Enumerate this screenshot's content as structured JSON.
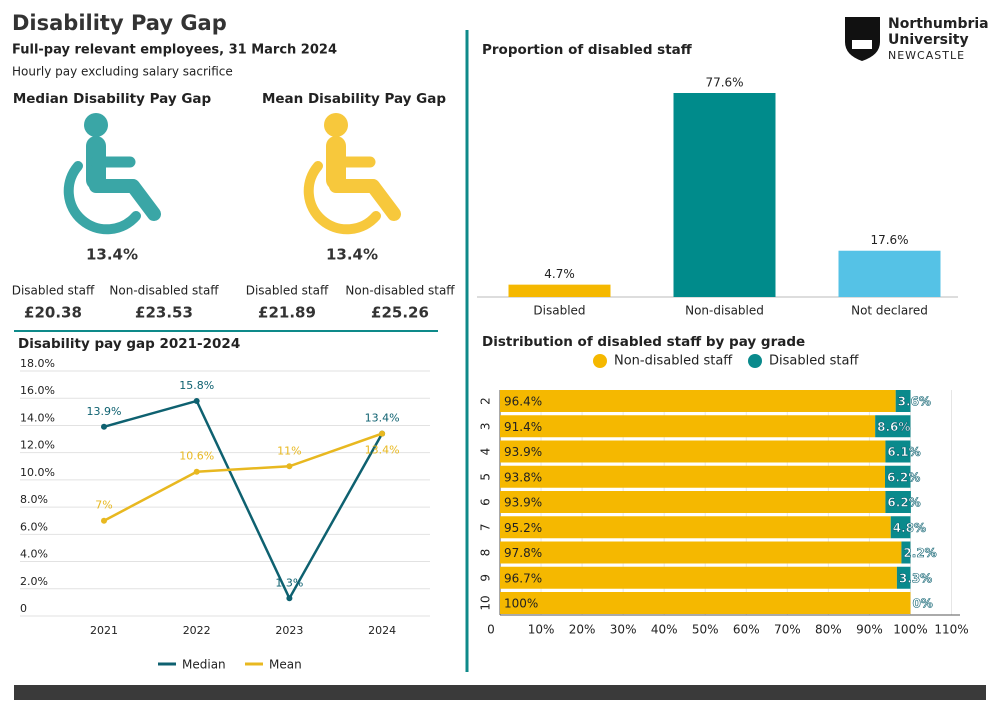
{
  "header": {
    "title": "Disability Pay Gap",
    "subtitle": "Full-pay relevant employees, 31 March 2024",
    "note": "Hourly pay excluding salary sacrifice",
    "logo": [
      "Northumbria",
      "University",
      "NEWCASTLE"
    ]
  },
  "kpis": [
    {
      "title": "Median Disability Pay Gap",
      "value": "13.4%",
      "color": "#3aa6a6",
      "disabled_label": "Disabled staff",
      "disabled_value": "£20.38",
      "non_disabled_label": "Non-disabled staff",
      "non_disabled_value": "£23.53"
    },
    {
      "title": "Mean Disability Pay Gap",
      "value": "13.4%",
      "color": "#f7c83c",
      "disabled_label": "Disabled staff",
      "disabled_value": "£21.89",
      "non_disabled_label": "Non-disabled staff",
      "non_disabled_value": "£25.26"
    }
  ],
  "chart_data": [
    {
      "type": "line",
      "title": "Disability pay gap 2021-2024",
      "categories": [
        "2021",
        "2022",
        "2023",
        "2024"
      ],
      "series": [
        {
          "name": "Median",
          "color": "#0e6170",
          "values": [
            13.9,
            15.8,
            1.3,
            13.4
          ],
          "value_labels": [
            "13.9%",
            "15.8%",
            "1.3%",
            "13.4%"
          ]
        },
        {
          "name": "Mean",
          "color": "#e8b820",
          "values": [
            7,
            10.6,
            11,
            13.4
          ],
          "value_labels": [
            "7%",
            "10.6%",
            "11%",
            "13.4%"
          ]
        }
      ],
      "ylim": [
        0,
        18
      ],
      "yticks": [
        0,
        {
          "value": 2,
          "label": "2.0%"
        },
        {
          "value": 4,
          "label": "4.0%"
        },
        {
          "value": 6,
          "label": "6.0%"
        },
        {
          "value": 8,
          "label": "8.0%"
        },
        {
          "value": 10,
          "label": "10.0%"
        },
        {
          "value": 12,
          "label": "12.0%"
        },
        {
          "value": 14,
          "label": "14.0%"
        },
        {
          "value": 16,
          "label": "16.0%"
        },
        {
          "value": 18,
          "label": "18.0%"
        }
      ],
      "grid": true,
      "legend": "bottom"
    },
    {
      "type": "bar",
      "title": "Proportion of disabled staff",
      "categories": [
        "Disabled",
        "Non-disabled",
        "Not declared"
      ],
      "values": [
        4.7,
        77.6,
        17.6
      ],
      "value_labels": [
        "4.7%",
        "77.6%",
        "17.6%"
      ],
      "colors": [
        "#f5b800",
        "#008b8b",
        "#55c2e6"
      ]
    },
    {
      "type": "stacked-hbar",
      "title": "Distribution of disabled staff by pay grade",
      "categories": [
        "2",
        "3",
        "4",
        "5",
        "6",
        "7",
        "8",
        "9",
        "10"
      ],
      "series": [
        {
          "name": "Non-disabled staff",
          "color": "#f5b800",
          "values": [
            96.4,
            91.4,
            93.9,
            93.8,
            93.9,
            95.2,
            97.8,
            96.7,
            100
          ],
          "value_labels": [
            "96.4%",
            "91.4%",
            "93.9%",
            "93.8%",
            "93.9%",
            "95.2%",
            "97.8%",
            "96.7%",
            "100%"
          ]
        },
        {
          "name": "Disabled staff",
          "color": "#0a8a8c",
          "values": [
            3.6,
            8.6,
            6.1,
            6.2,
            6.2,
            4.8,
            2.2,
            3.3,
            0
          ],
          "value_labels": [
            "3.6%",
            "8.6%",
            "6.1%",
            "6.2%",
            "6.2%",
            "4.8%",
            "2.2%",
            "3.3%",
            "0%"
          ]
        }
      ],
      "xlim": [
        0,
        110
      ],
      "xticks": [
        0,
        {
          "value": 10,
          "label": "10%"
        },
        {
          "value": 20,
          "label": "20%"
        },
        {
          "value": 30,
          "label": "30%"
        },
        {
          "value": 40,
          "label": "40%"
        },
        {
          "value": 50,
          "label": "50%"
        },
        {
          "value": 60,
          "label": "60%"
        },
        {
          "value": 70,
          "label": "70%"
        },
        {
          "value": 80,
          "label": "80%"
        },
        {
          "value": 90,
          "label": "90%"
        },
        {
          "value": 100,
          "label": "100%"
        },
        {
          "value": 110,
          "label": "110%"
        }
      ],
      "grid": true,
      "legend": "top"
    }
  ]
}
